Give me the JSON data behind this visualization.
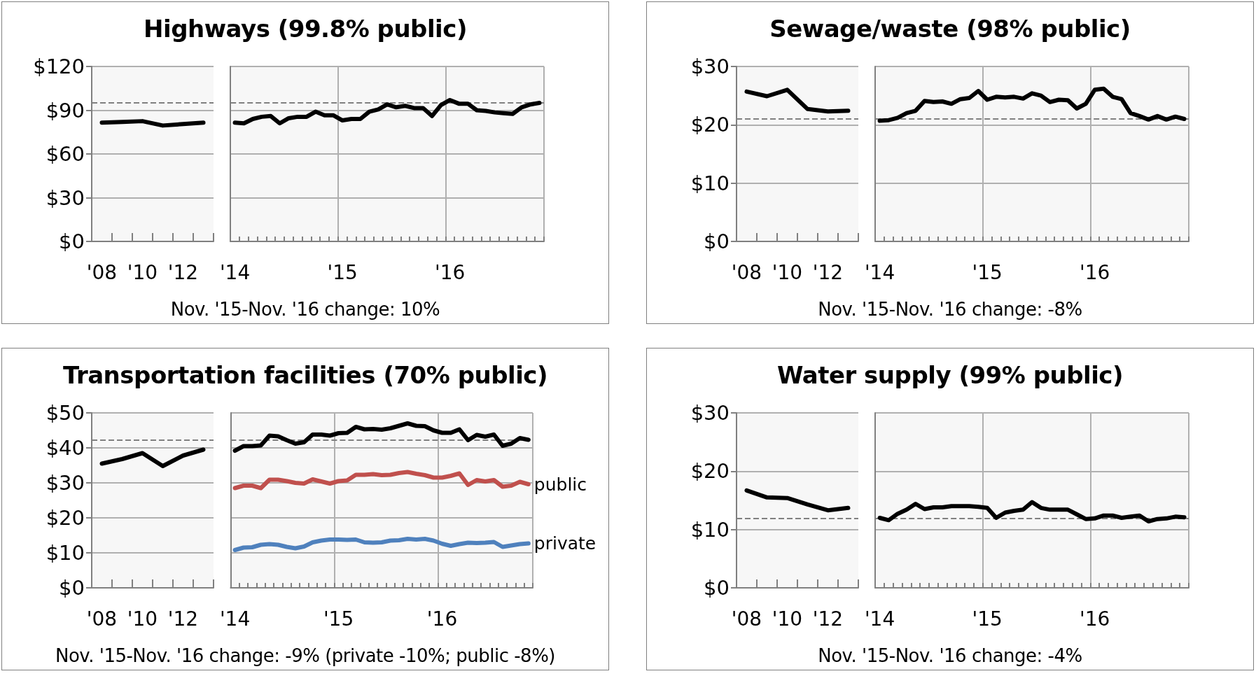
{
  "chart_data": [
    {
      "type": "line",
      "title": "Highways (99.8% public)",
      "annotations": [
        "Nov. '15-Nov. '16 change: 10%"
      ],
      "categories": [
        "'08",
        null,
        "'10",
        null,
        "'12",
        null
      ],
      "series": [
        {
          "color": "#000000",
          "values": [
            81.5,
            82,
            82.5,
            79.5,
            80.5,
            81.5
          ]
        }
      ],
      "ylim": [
        0,
        120
      ],
      "yticks": [
        {
          "value": 0,
          "label": "$0"
        },
        {
          "value": 30,
          "label": "$30"
        },
        {
          "value": 60,
          "label": "$60"
        },
        {
          "value": 90,
          "label": "$90"
        },
        {
          "value": 120,
          "label": "$120"
        }
      ],
      "ref_lines": [
        {
          "axis": "y",
          "value": 95,
          "color": "#808080",
          "line_style": "dashed"
        }
      ],
      "grid": "y",
      "marker": "none"
    },
    {
      "type": "line",
      "categories": [
        "'14",
        null,
        null,
        null,
        null,
        null,
        null,
        null,
        null,
        null,
        null,
        null,
        "'15",
        null,
        null,
        null,
        null,
        null,
        null,
        null,
        null,
        null,
        null,
        null,
        "'16",
        null,
        null,
        null,
        null,
        null,
        null,
        null,
        null,
        null,
        null
      ],
      "series": [
        {
          "color": "#000000",
          "values": [
            81.5,
            81,
            84,
            85.5,
            86,
            81,
            84.5,
            85.5,
            85.5,
            89,
            86.5,
            86.5,
            83,
            84,
            84,
            89,
            90.5,
            94,
            92,
            93,
            91.5,
            91.5,
            86,
            93.5,
            97,
            94.5,
            94.5,
            90,
            89.5,
            88.5,
            88,
            87.5,
            92,
            94,
            95
          ]
        }
      ],
      "ylim": [
        0,
        120
      ],
      "yticks": [
        0,
        30,
        60,
        90,
        120
      ],
      "ref_lines": [
        {
          "axis": "y",
          "value": 95,
          "color": "#808080",
          "line_style": "dashed"
        }
      ],
      "grid": true,
      "marker": "none",
      "tick_labels": "x"
    },
    {
      "type": "line",
      "title": "Sewage/waste (98% public)",
      "annotations": [
        "Nov. '15-Nov. '16 change: -8%"
      ],
      "categories": [
        "'08",
        null,
        "'10",
        null,
        "'12",
        null
      ],
      "series": [
        {
          "color": "#000000",
          "values": [
            25.7,
            24.9,
            26.0,
            22.7,
            22.3,
            22.4
          ]
        }
      ],
      "ylim": [
        0,
        30
      ],
      "yticks": [
        {
          "value": 0,
          "label": "$0"
        },
        {
          "value": 10,
          "label": "$10"
        },
        {
          "value": 20,
          "label": "$20"
        },
        {
          "value": 30,
          "label": "$30"
        }
      ],
      "ref_lines": [
        {
          "axis": "y",
          "value": 21,
          "color": "#808080",
          "line_style": "dashed"
        }
      ],
      "grid": "y",
      "marker": "none"
    },
    {
      "type": "line",
      "categories": [
        "'14",
        null,
        null,
        null,
        null,
        null,
        null,
        null,
        null,
        null,
        null,
        null,
        "'15",
        null,
        null,
        null,
        null,
        null,
        null,
        null,
        null,
        null,
        null,
        null,
        "'16",
        null,
        null,
        null,
        null,
        null,
        null,
        null,
        null,
        null,
        null
      ],
      "series": [
        {
          "color": "#000000",
          "values": [
            20.7,
            20.8,
            21.2,
            22.0,
            22.4,
            24.1,
            23.9,
            24.0,
            23.6,
            24.4,
            24.6,
            25.8,
            24.3,
            24.8,
            24.7,
            24.8,
            24.5,
            25.4,
            25.0,
            23.9,
            24.3,
            24.2,
            22.8,
            23.6,
            26.0,
            26.2,
            24.8,
            24.4,
            22.0,
            21.5,
            20.9,
            21.5,
            20.9,
            21.4,
            21.0
          ]
        }
      ],
      "ylim": [
        0,
        30
      ],
      "yticks": [
        0,
        10,
        20,
        30
      ],
      "ref_lines": [
        {
          "axis": "y",
          "value": 21,
          "color": "#808080",
          "line_style": "dashed"
        }
      ],
      "grid": true,
      "marker": "none",
      "tick_labels": "x"
    },
    {
      "type": "line",
      "title": "Transportation facilities (70% public)",
      "annotations": [
        "Nov. '15-Nov. '16 change: -9% (private -10%; public -8%)"
      ],
      "categories": [
        "'08",
        null,
        "'10",
        null,
        "'12",
        null
      ],
      "series": [
        {
          "color": "#000000",
          "values": [
            35.5,
            36.8,
            38.5,
            34.8,
            37.8,
            39.5
          ]
        }
      ],
      "ylim": [
        0,
        50
      ],
      "yticks": [
        {
          "value": 0,
          "label": "$0"
        },
        {
          "value": 10,
          "label": "$10"
        },
        {
          "value": 20,
          "label": "$20"
        },
        {
          "value": 30,
          "label": "$30"
        },
        {
          "value": 40,
          "label": "$40"
        },
        {
          "value": 50,
          "label": "$50"
        }
      ],
      "ref_lines": [
        {
          "axis": "y",
          "value": 42.2,
          "color": "#808080",
          "line_style": "dashed"
        }
      ],
      "grid": "y",
      "marker": "none"
    },
    {
      "type": "line",
      "categories": [
        "'14",
        null,
        null,
        null,
        null,
        null,
        null,
        null,
        null,
        null,
        null,
        null,
        "'15",
        null,
        null,
        null,
        null,
        null,
        null,
        null,
        null,
        null,
        null,
        null,
        "'16",
        null,
        null,
        null,
        null,
        null,
        null,
        null,
        null,
        null,
        null
      ],
      "series": [
        {
          "color": "#000000",
          "values": [
            39.2,
            40.5,
            40.5,
            40.7,
            43.5,
            43.3,
            42.2,
            41.2,
            41.6,
            43.8,
            43.8,
            43.5,
            44.2,
            44.3,
            46.0,
            45.3,
            45.4,
            45.2,
            45.6,
            46.3,
            47.0,
            46.3,
            46.2,
            45.0,
            44.3,
            44.3,
            45.3,
            42.2,
            43.7,
            43.2,
            43.8,
            40.6,
            41.2,
            42.8,
            42.3
          ]
        },
        {
          "name": "public",
          "color": "#c0504d",
          "values": [
            28.5,
            29.2,
            29.2,
            28.5,
            30.9,
            30.9,
            30.5,
            30.0,
            29.8,
            31.0,
            30.4,
            29.8,
            30.5,
            30.7,
            32.3,
            32.3,
            32.5,
            32.2,
            32.3,
            32.8,
            33.1,
            32.6,
            32.2,
            31.5,
            31.5,
            32.0,
            32.7,
            29.4,
            30.8,
            30.4,
            30.8,
            28.9,
            29.2,
            30.3,
            29.6
          ]
        },
        {
          "name": "private",
          "color": "#4f81bd",
          "values": [
            10.8,
            11.5,
            11.6,
            12.3,
            12.5,
            12.3,
            11.7,
            11.3,
            11.8,
            13.0,
            13.5,
            13.8,
            13.8,
            13.7,
            13.8,
            13.0,
            12.9,
            13.0,
            13.5,
            13.6,
            14.0,
            13.8,
            14.0,
            13.5,
            12.6,
            12.0,
            12.5,
            12.9,
            12.8,
            12.9,
            13.1,
            11.7,
            12.1,
            12.5,
            12.7
          ]
        }
      ],
      "ylim": [
        0,
        50
      ],
      "yticks": [
        0,
        10,
        20,
        30,
        40,
        50
      ],
      "ref_lines": [
        {
          "axis": "y",
          "value": 42.2,
          "color": "#808080",
          "line_style": "dashed"
        }
      ],
      "grid": true,
      "marker": "none",
      "tick_labels": "x"
    },
    {
      "type": "line",
      "title": "Water supply (99% public)",
      "annotations": [
        "Nov. '15-Nov. '16 change: -4%"
      ],
      "categories": [
        "'08",
        null,
        "'10",
        null,
        "'12",
        null
      ],
      "series": [
        {
          "color": "#000000",
          "values": [
            16.7,
            15.5,
            15.4,
            14.3,
            13.3,
            13.7
          ]
        }
      ],
      "ylim": [
        0,
        30
      ],
      "yticks": [
        {
          "value": 0,
          "label": "$0"
        },
        {
          "value": 10,
          "label": "$10"
        },
        {
          "value": 20,
          "label": "$20"
        },
        {
          "value": 30,
          "label": "$30"
        }
      ],
      "ref_lines": [
        {
          "axis": "y",
          "value": 11.9,
          "color": "#808080",
          "line_style": "dashed"
        }
      ],
      "grid": "y",
      "marker": "none"
    },
    {
      "type": "line",
      "categories": [
        "'14",
        null,
        null,
        null,
        null,
        null,
        null,
        null,
        null,
        null,
        null,
        null,
        "'15",
        null,
        null,
        null,
        null,
        null,
        null,
        null,
        null,
        null,
        null,
        null,
        "'16",
        null,
        null,
        null,
        null,
        null,
        null,
        null,
        null,
        null,
        null
      ],
      "series": [
        {
          "color": "#000000",
          "values": [
            12.0,
            11.6,
            12.7,
            13.4,
            14.4,
            13.5,
            13.8,
            13.8,
            14.0,
            14.0,
            14.0,
            13.9,
            13.7,
            12.0,
            12.9,
            13.2,
            13.4,
            14.7,
            13.7,
            13.4,
            13.4,
            13.4,
            12.6,
            11.8,
            11.9,
            12.4,
            12.4,
            12.0,
            12.2,
            12.4,
            11.4,
            11.8,
            11.9,
            12.2,
            12.1
          ]
        }
      ],
      "ylim": [
        0,
        30
      ],
      "yticks": [
        0,
        10,
        20,
        30
      ],
      "ref_lines": [
        {
          "axis": "y",
          "value": 11.9,
          "color": "#808080",
          "line_style": "dashed"
        }
      ],
      "grid": true,
      "marker": "none",
      "tick_labels": "x"
    }
  ]
}
